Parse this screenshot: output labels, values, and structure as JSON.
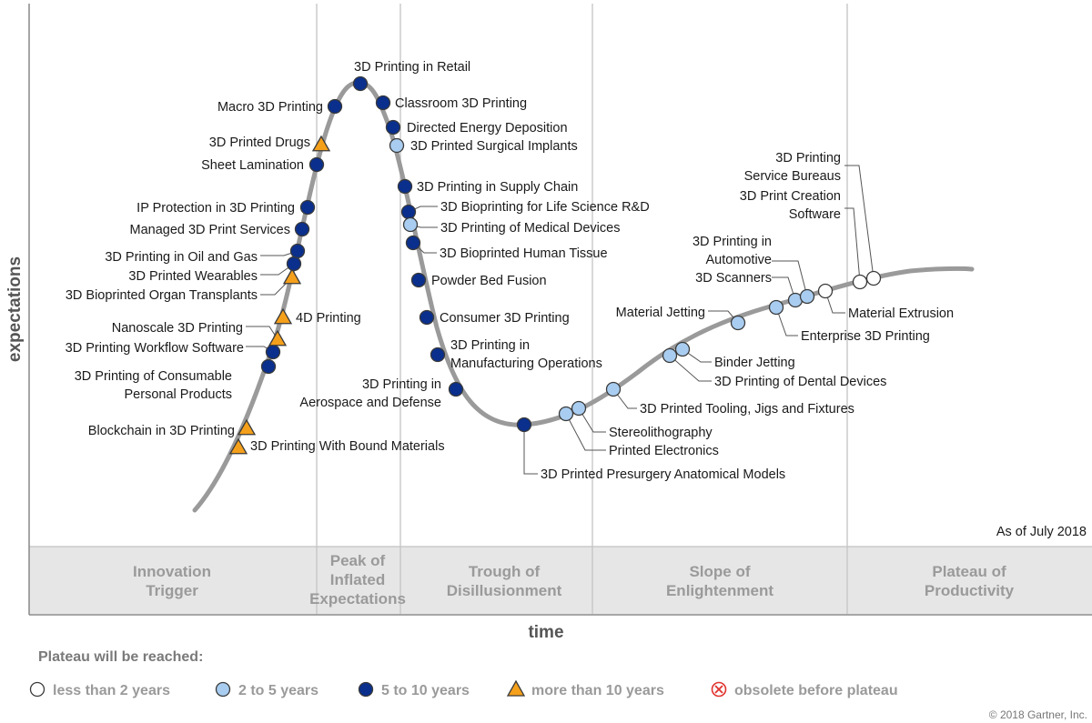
{
  "colors": {
    "less_than_2": "#ffffff",
    "two_to_five": "#a9cdf0",
    "five_to_ten": "#0a2f8c",
    "more_than_10": "#f5a01b",
    "obsolete": "#e0332e",
    "curve": "#9a9a9a"
  },
  "axes": {
    "y_label": "expectations",
    "x_label": "time"
  },
  "as_of": "As of July 2018",
  "phases": [
    [
      "Innovation",
      "Trigger"
    ],
    [
      "Peak of",
      "Inflated",
      "Expectations"
    ],
    [
      "Trough of",
      "Disillusionment"
    ],
    [
      "Slope of",
      "Enlightenment"
    ],
    [
      "Plateau of",
      "Productivity"
    ]
  ],
  "legend": {
    "title": "Plateau will be reached:",
    "items": [
      {
        "key": "less_than_2",
        "shape": "circle",
        "label": "less than 2 years"
      },
      {
        "key": "two_to_five",
        "shape": "circle",
        "label": "2 to 5 years"
      },
      {
        "key": "five_to_ten",
        "shape": "circle",
        "label": "5 to 10 years"
      },
      {
        "key": "more_than_10",
        "shape": "triangle",
        "label": "more than 10 years"
      },
      {
        "key": "obsolete",
        "shape": "cross-circle",
        "label": "obsolete before plateau"
      }
    ]
  },
  "copyright": "© 2018 Gartner, Inc.",
  "technologies": [
    {
      "name": [
        "3D Printing With Bound Materials"
      ],
      "category": "more_than_10"
    },
    {
      "name": [
        "Blockchain in 3D Printing"
      ],
      "category": "more_than_10"
    },
    {
      "name": [
        "3D Printing of Consumable",
        "Personal Products"
      ],
      "category": "five_to_ten"
    },
    {
      "name": [
        "3D Printing Workflow Software"
      ],
      "category": "five_to_ten"
    },
    {
      "name": [
        "Nanoscale 3D Printing"
      ],
      "category": "more_than_10"
    },
    {
      "name": [
        "4D Printing"
      ],
      "category": "more_than_10"
    },
    {
      "name": [
        "3D Bioprinted Organ Transplants"
      ],
      "category": "more_than_10"
    },
    {
      "name": [
        "3D Printed Wearables"
      ],
      "category": "five_to_ten"
    },
    {
      "name": [
        "3D Printing in Oil and Gas"
      ],
      "category": "five_to_ten"
    },
    {
      "name": [
        "Managed 3D Print Services"
      ],
      "category": "five_to_ten"
    },
    {
      "name": [
        "IP Protection in 3D Printing"
      ],
      "category": "five_to_ten"
    },
    {
      "name": [
        "Sheet Lamination"
      ],
      "category": "five_to_ten"
    },
    {
      "name": [
        "3D Printed Drugs"
      ],
      "category": "more_than_10"
    },
    {
      "name": [
        "Macro 3D Printing"
      ],
      "category": "five_to_ten"
    },
    {
      "name": [
        "3D Printing in Retail"
      ],
      "category": "five_to_ten"
    },
    {
      "name": [
        "Classroom 3D Printing"
      ],
      "category": "five_to_ten"
    },
    {
      "name": [
        "Directed Energy Deposition"
      ],
      "category": "five_to_ten"
    },
    {
      "name": [
        "3D Printed Surgical Implants"
      ],
      "category": "two_to_five"
    },
    {
      "name": [
        "3D Printing in Supply Chain"
      ],
      "category": "five_to_ten"
    },
    {
      "name": [
        "3D Bioprinting for Life Science R&D"
      ],
      "category": "five_to_ten"
    },
    {
      "name": [
        "3D Printing of Medical Devices"
      ],
      "category": "two_to_five"
    },
    {
      "name": [
        "3D Bioprinted Human Tissue"
      ],
      "category": "five_to_ten"
    },
    {
      "name": [
        "Powder Bed Fusion"
      ],
      "category": "five_to_ten"
    },
    {
      "name": [
        "Consumer 3D Printing"
      ],
      "category": "five_to_ten"
    },
    {
      "name": [
        "3D Printing in",
        "Manufacturing Operations"
      ],
      "category": "five_to_ten"
    },
    {
      "name": [
        "3D Printing in",
        "Aerospace and Defense"
      ],
      "category": "five_to_ten"
    },
    {
      "name": [
        "3D Printed Presurgery Anatomical Models"
      ],
      "category": "five_to_ten"
    },
    {
      "name": [
        "Printed Electronics"
      ],
      "category": "two_to_five"
    },
    {
      "name": [
        "Stereolithography"
      ],
      "category": "two_to_five"
    },
    {
      "name": [
        "3D Printed Tooling, Jigs and Fixtures"
      ],
      "category": "two_to_five"
    },
    {
      "name": [
        "3D Printing of Dental Devices"
      ],
      "category": "two_to_five"
    },
    {
      "name": [
        "Binder Jetting"
      ],
      "category": "two_to_five"
    },
    {
      "name": [
        "Material Jetting"
      ],
      "category": "two_to_five"
    },
    {
      "name": [
        "Enterprise 3D Printing"
      ],
      "category": "two_to_five"
    },
    {
      "name": [
        "3D Scanners"
      ],
      "category": "two_to_five"
    },
    {
      "name": [
        "3D Printing in",
        "Automotive"
      ],
      "category": "two_to_five"
    },
    {
      "name": [
        "Material Extrusion"
      ],
      "category": "less_than_2"
    },
    {
      "name": [
        "3D Print Creation",
        "Software"
      ],
      "category": "less_than_2"
    },
    {
      "name": [
        "3D Printing",
        "Service Bureaus"
      ],
      "category": "less_than_2"
    }
  ]
}
